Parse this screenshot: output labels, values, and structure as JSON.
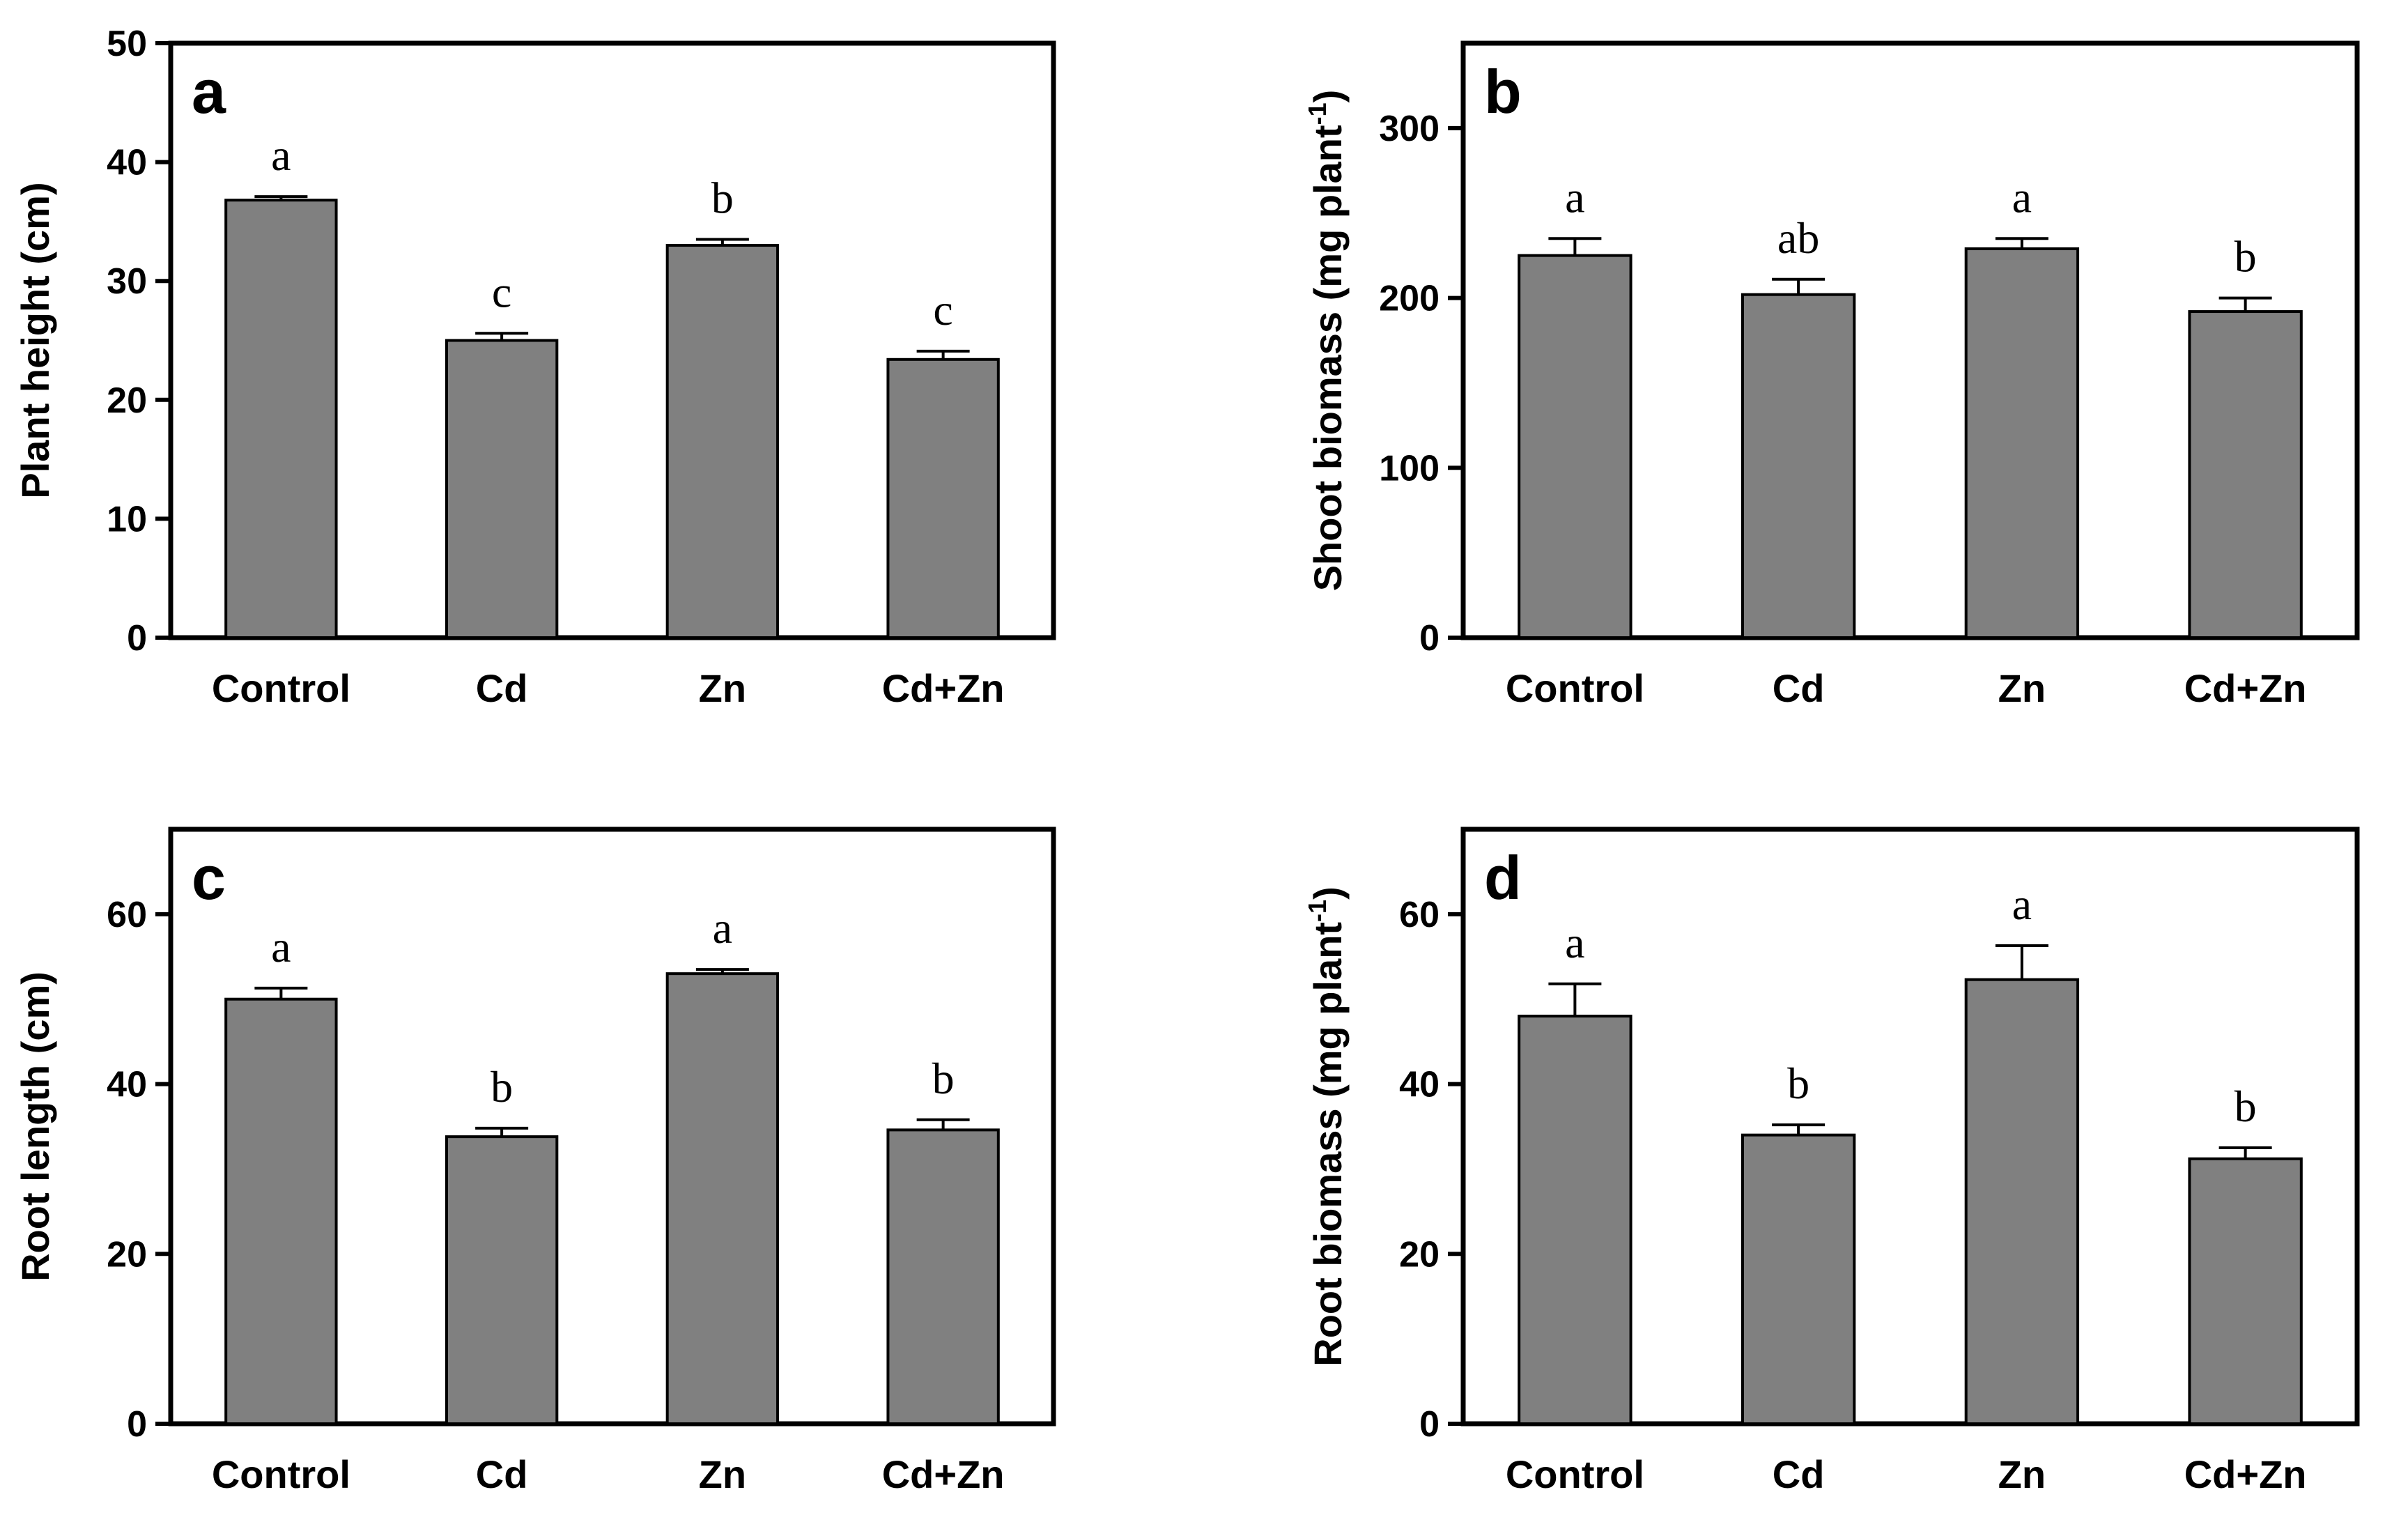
{
  "chart_data": [
    {
      "type": "bar",
      "panel": "a",
      "title": "",
      "xlabel": "",
      "ylabel": "Plant height (cm)",
      "ylabel_sup": "",
      "ylabel_tail": "",
      "categories": [
        "Control",
        "Cd",
        "Zn",
        "Cd+Zn"
      ],
      "values": [
        36.8,
        25.0,
        33.0,
        23.4
      ],
      "errors": [
        0.3,
        0.6,
        0.5,
        0.7
      ],
      "significance": [
        "a",
        "c",
        "b",
        "c"
      ],
      "ylim": [
        0,
        50
      ],
      "yticks": [
        0,
        10,
        20,
        30,
        40,
        50
      ],
      "grid": false
    },
    {
      "type": "bar",
      "panel": "b",
      "title": "",
      "xlabel": "",
      "ylabel": "Shoot biomass (mg plant",
      "ylabel_sup": "-1",
      "ylabel_tail": ")",
      "categories": [
        "Control",
        "Cd",
        "Zn",
        "Cd+Zn"
      ],
      "values": [
        225,
        202,
        229,
        192
      ],
      "errors": [
        10,
        9,
        6,
        8
      ],
      "significance": [
        "a",
        "ab",
        "a",
        "b"
      ],
      "ylim": [
        0,
        350
      ],
      "yticks": [
        0,
        100,
        200,
        300
      ],
      "grid": false
    },
    {
      "type": "bar",
      "panel": "c",
      "title": "",
      "xlabel": "",
      "ylabel": "Root length (cm)",
      "ylabel_sup": "",
      "ylabel_tail": "",
      "categories": [
        "Control",
        "Cd",
        "Zn",
        "Cd+Zn"
      ],
      "values": [
        50.0,
        33.8,
        53.0,
        34.6
      ],
      "errors": [
        1.3,
        1.0,
        0.5,
        1.2
      ],
      "significance": [
        "a",
        "b",
        "a",
        "b"
      ],
      "ylim": [
        0,
        70
      ],
      "yticks": [
        0,
        20,
        40,
        60
      ],
      "grid": false
    },
    {
      "type": "bar",
      "panel": "d",
      "title": "",
      "xlabel": "",
      "ylabel": "Root biomass (mg plant",
      "ylabel_sup": "-1",
      "ylabel_tail": ")",
      "categories": [
        "Control",
        "Cd",
        "Zn",
        "Cd+Zn"
      ],
      "values": [
        48.0,
        34.0,
        52.3,
        31.2
      ],
      "errors": [
        3.8,
        1.2,
        4.0,
        1.3
      ],
      "significance": [
        "a",
        "b",
        "a",
        "b"
      ],
      "ylim": [
        0,
        70
      ],
      "yticks": [
        0,
        20,
        40,
        60
      ],
      "grid": false
    }
  ]
}
